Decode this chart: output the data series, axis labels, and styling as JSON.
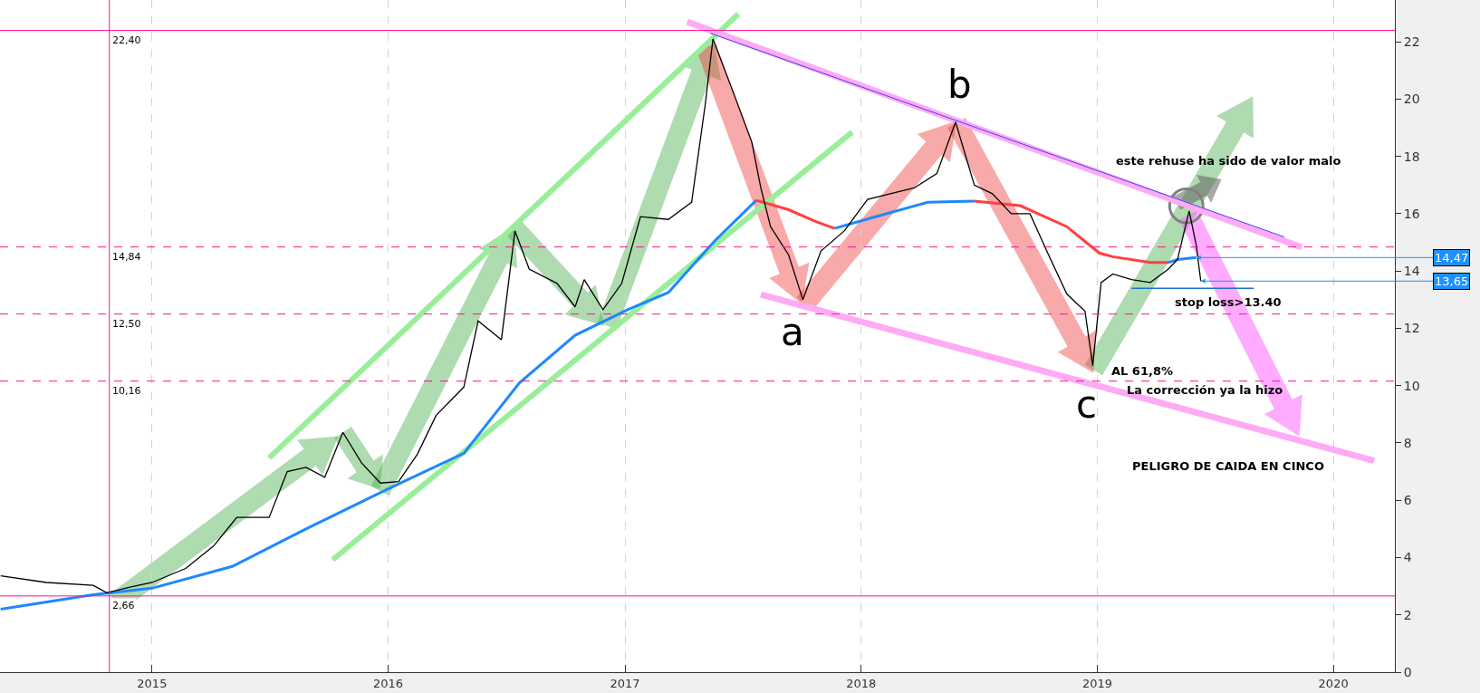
{
  "chart_data": {
    "type": "line",
    "xlim": [
      "2014-05-11",
      "2020-04-05"
    ],
    "xticks": [
      {
        "value": "2015-01-01",
        "label": "2015"
      },
      {
        "value": "2016-01-01",
        "label": "2016"
      },
      {
        "value": "2017-01-01",
        "label": "2017"
      },
      {
        "value": "2018-01-01",
        "label": "2018"
      },
      {
        "value": "2019-01-01",
        "label": "2019"
      },
      {
        "value": "2020-01-01",
        "label": "2020"
      }
    ],
    "ylim": [
      0,
      23.46
    ],
    "yticks": [
      0,
      2,
      4,
      6,
      8,
      10,
      12,
      14,
      16,
      18,
      20,
      22
    ],
    "grid": "x",
    "marker": "none",
    "series": [
      {
        "color": "#99ee99",
        "x": [
          "2015-07-01",
          "2017-06-25"
        ],
        "values": [
          7.48,
          22.97
        ]
      },
      {
        "color": "#99ee99",
        "x": [
          "2015-10-07",
          "2017-12-18"
        ],
        "values": [
          3.92,
          18.85
        ]
      },
      {
        "color": "#ffaaf5",
        "x": [
          "2017-04-07",
          "2019-11-13"
        ],
        "values": [
          22.7,
          14.83
        ]
      },
      {
        "color": "#ffaaf5",
        "x": [
          "2017-07-30",
          "2020-03-04"
        ],
        "values": [
          13.18,
          7.38
        ]
      },
      {
        "color": "#4040ff",
        "x": [
          "2017-05-13",
          "2019-10-17"
        ],
        "values": [
          22.3,
          15.19
        ]
      },
      {
        "color": "#1e70d0",
        "x": [
          "2019-02-23",
          "2019-08-31"
        ],
        "values": [
          13.4,
          13.4
        ]
      },
      {
        "color": "#1e88ff",
        "x": [
          "2014-05-12",
          "2014-10-02",
          "2015-01-01",
          "2015-05-05",
          "2015-08-27",
          "2016-01-01",
          "2016-04-27",
          "2016-07-22",
          "2016-10-16",
          "2017-01-05",
          "2017-03-09",
          "2017-05-20",
          "2017-07-23"
        ],
        "values": [
          2.2,
          2.7,
          2.93,
          3.69,
          5.0,
          6.4,
          7.64,
          10.1,
          11.76,
          12.65,
          13.25,
          15.06,
          16.47
        ]
      },
      {
        "color": "#ff4040",
        "x": [
          "2017-07-23",
          "2017-09-11",
          "2017-10-24",
          "2017-11-21"
        ],
        "values": [
          16.47,
          16.14,
          15.72,
          15.49
        ]
      },
      {
        "color": "#1e88ff",
        "x": [
          "2017-11-21",
          "2018-02-01",
          "2018-04-14",
          "2018-06-25"
        ],
        "values": [
          15.49,
          15.95,
          16.4,
          16.44
        ]
      },
      {
        "color": "#ff4040",
        "x": [
          "2018-06-25",
          "2018-09-04",
          "2018-11-15",
          "2019-01-04",
          "2019-01-25",
          "2019-03-24",
          "2019-04-21"
        ],
        "values": [
          16.44,
          16.28,
          15.55,
          14.63,
          14.5,
          14.3,
          14.3
        ]
      },
      {
        "color": "#1e88ff",
        "x": [
          "2019-04-21",
          "2019-05-05",
          "2019-06-03"
        ],
        "values": [
          14.3,
          14.4,
          14.47
        ]
      },
      {
        "color": "#000000",
        "x": [
          "2014-05-12",
          "2014-07-22",
          "2014-10-02",
          "2014-10-23",
          "2014-11-28",
          "2015-01-01",
          "2015-02-22",
          "2015-04-06",
          "2015-05-12",
          "2015-07-01",
          "2015-07-29",
          "2015-08-27",
          "2015-09-25",
          "2015-10-23",
          "2015-11-21",
          "2015-12-20",
          "2016-01-17",
          "2016-02-15",
          "2016-03-15",
          "2016-04-27",
          "2016-05-19",
          "2016-06-24",
          "2016-07-15",
          "2016-08-06",
          "2016-09-18",
          "2016-10-16",
          "2016-10-30",
          "2016-11-28",
          "2016-12-27",
          "2017-01-25",
          "2017-03-09",
          "2017-04-14",
          "2017-05-05",
          "2017-05-17",
          "2017-06-18",
          "2017-07-16",
          "2017-07-30",
          "2017-08-14",
          "2017-09-11",
          "2017-10-03",
          "2017-10-31",
          "2017-12-06",
          "2018-01-11",
          "2018-02-15",
          "2018-03-24",
          "2018-04-28",
          "2018-05-27",
          "2018-06-25",
          "2018-07-23",
          "2018-08-21",
          "2018-09-19",
          "2018-10-17",
          "2018-11-15",
          "2018-12-13",
          "2018-12-25",
          "2019-01-07",
          "2019-01-25",
          "2019-02-23",
          "2019-03-24",
          "2019-04-21",
          "2019-05-05",
          "2019-05-23",
          "2019-06-03",
          "2019-06-10"
        ],
        "values": [
          3.36,
          3.13,
          3.03,
          2.77,
          2.97,
          3.13,
          3.62,
          4.4,
          5.4,
          5.4,
          7.0,
          7.15,
          6.8,
          8.37,
          7.3,
          6.6,
          6.65,
          7.6,
          8.96,
          9.95,
          12.26,
          11.6,
          15.4,
          14.07,
          13.57,
          12.75,
          13.7,
          12.65,
          13.57,
          15.9,
          15.8,
          16.4,
          19.8,
          22.1,
          20.2,
          18.5,
          16.9,
          15.55,
          14.56,
          13.0,
          14.7,
          15.4,
          16.5,
          16.7,
          16.9,
          17.4,
          19.2,
          17.0,
          16.7,
          16.0,
          16.0,
          14.6,
          13.2,
          12.6,
          10.7,
          13.6,
          13.9,
          13.7,
          13.6,
          14.07,
          14.4,
          16.1,
          14.9,
          13.65
        ]
      }
    ],
    "ref_lines": [
      {
        "axis": "y",
        "value": 22.4,
        "label": "22,40",
        "color": "#ff1493",
        "line_style": "solid"
      },
      {
        "axis": "y",
        "value": 14.84,
        "label": "14,84",
        "color": "#ff1493",
        "line_style": "dashed"
      },
      {
        "axis": "y",
        "value": 12.5,
        "label": "12,50",
        "color": "#ff1493",
        "line_style": "dashed"
      },
      {
        "axis": "y",
        "value": 10.16,
        "label": "10,16",
        "color": "#ff1493",
        "line_style": "dashed"
      },
      {
        "axis": "y",
        "value": 2.66,
        "label": "2,66",
        "color": "#ff1493",
        "line_style": "solid"
      },
      {
        "axis": "x",
        "value": "2014-10-27",
        "color": "#ff1493",
        "line_style": "solid"
      }
    ],
    "annotations": [
      "a",
      "b",
      "c",
      "este rehuse ha sido de valor malo",
      "stop loss>13.40",
      "AL 61,8%",
      "La corrección ya la hizo",
      "PELIGRO DE CAIDA EN CINCO",
      {
        "text": "14,47",
        "x": "2019-06-03",
        "y": 14.47
      },
      {
        "text": "13,65",
        "x": "2019-06-10",
        "y": 13.65
      }
    ]
  }
}
